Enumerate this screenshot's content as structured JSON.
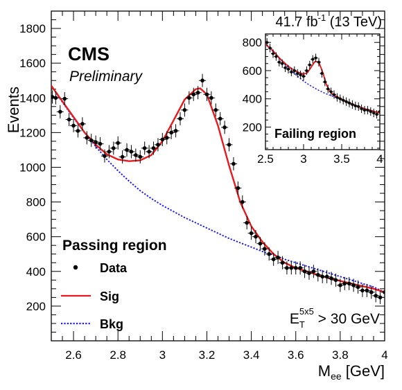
{
  "chart_data": [
    {
      "type": "scatter",
      "title": "",
      "xlabel_main": "M",
      "xlabel_sub": "ee",
      "xlabel_unit": " [GeV]",
      "ylabel": "Events",
      "xlim": [
        2.5,
        4.0
      ],
      "ylim": [
        0,
        1900
      ],
      "x_ticks": [
        2.6,
        2.8,
        3.0,
        3.2,
        3.4,
        3.6,
        3.8,
        4.0
      ],
      "x_tick_labels": [
        "2.6",
        "2.8",
        "3",
        "3.2",
        "3.4",
        "3.6",
        "3.8",
        "4"
      ],
      "y_ticks": [
        200,
        400,
        600,
        800,
        1000,
        1200,
        1400,
        1600,
        1800
      ],
      "y_tick_labels": [
        "200",
        "400",
        "600",
        "800",
        "1000",
        "1200",
        "1400",
        "1600",
        "1800"
      ],
      "lumi_label": "41.7 fb",
      "lumi_exp": "-1",
      "lumi_energy": " (13 TeV)",
      "experiment_label": "CMS",
      "status_label": "Preliminary",
      "legend": {
        "title": "Passing region",
        "entries": [
          {
            "label": "Data",
            "style": "marker",
            "color": "#000000"
          },
          {
            "label": "Sig",
            "style": "line",
            "color": "#e8191c"
          },
          {
            "label": "Bkg",
            "style": "dotted",
            "color": "#1a1aff"
          }
        ],
        "placement": "bottom-left"
      },
      "cut_label": {
        "main": "E",
        "sub": "T",
        "sup": "5x5",
        "rest": " > 30 GeV"
      },
      "series": [
        {
          "name": "Data",
          "x": [
            2.505,
            2.52,
            2.54,
            2.56,
            2.58,
            2.6,
            2.62,
            2.64,
            2.66,
            2.68,
            2.7,
            2.72,
            2.74,
            2.76,
            2.78,
            2.8,
            2.82,
            2.84,
            2.86,
            2.88,
            2.9,
            2.92,
            2.94,
            2.96,
            2.98,
            3.0,
            3.02,
            3.04,
            3.06,
            3.08,
            3.1,
            3.12,
            3.14,
            3.16,
            3.18,
            3.2,
            3.22,
            3.24,
            3.26,
            3.28,
            3.3,
            3.32,
            3.34,
            3.36,
            3.38,
            3.4,
            3.42,
            3.44,
            3.46,
            3.48,
            3.5,
            3.52,
            3.54,
            3.56,
            3.58,
            3.6,
            3.62,
            3.64,
            3.66,
            3.68,
            3.7,
            3.72,
            3.74,
            3.76,
            3.78,
            3.8,
            3.82,
            3.84,
            3.86,
            3.88,
            3.9,
            3.92,
            3.94,
            3.96,
            3.98,
            4.0
          ],
          "y": [
            1405,
            1400,
            1320,
            1395,
            1275,
            1240,
            1210,
            1250,
            1170,
            1155,
            1145,
            1135,
            1065,
            1090,
            1110,
            1140,
            1060,
            1100,
            1090,
            1070,
            1060,
            1110,
            1090,
            1110,
            1130,
            1160,
            1170,
            1200,
            1210,
            1280,
            1330,
            1400,
            1420,
            1430,
            1500,
            1420,
            1400,
            1330,
            1280,
            1230,
            1130,
            1020,
            880,
            800,
            680,
            620,
            600,
            560,
            530,
            500,
            470,
            480,
            450,
            420,
            420,
            420,
            420,
            400,
            390,
            400,
            380,
            370,
            370,
            360,
            350,
            320,
            330,
            330,
            320,
            310,
            290,
            290,
            280,
            260,
            250,
            280
          ],
          "yerr": 38
        },
        {
          "name": "Sig",
          "color": "#e8191c",
          "x": [
            2.5,
            2.55,
            2.6,
            2.65,
            2.7,
            2.75,
            2.8,
            2.85,
            2.9,
            2.95,
            3.0,
            3.05,
            3.1,
            3.15,
            3.17,
            3.2,
            3.25,
            3.3,
            3.35,
            3.4,
            3.45,
            3.5,
            3.55,
            3.6,
            3.65,
            3.7,
            3.75,
            3.8,
            3.85,
            3.9,
            3.95,
            4.0
          ],
          "y": [
            1470,
            1380,
            1290,
            1200,
            1130,
            1075,
            1045,
            1035,
            1040,
            1070,
            1150,
            1270,
            1390,
            1450,
            1455,
            1420,
            1240,
            1010,
            800,
            660,
            570,
            500,
            450,
            420,
            400,
            380,
            360,
            345,
            330,
            315,
            300,
            280
          ]
        },
        {
          "name": "Bkg",
          "color": "#1a1aff",
          "x": [
            2.5,
            2.55,
            2.6,
            2.65,
            2.7,
            2.75,
            2.8,
            2.85,
            2.9,
            2.95,
            3.0,
            3.05,
            3.1,
            3.15,
            3.2,
            3.25,
            3.3,
            3.35,
            3.4,
            3.45,
            3.5,
            3.55,
            3.6,
            3.65,
            3.7,
            3.75,
            3.8,
            3.85,
            3.9,
            3.95,
            4.0
          ],
          "y": [
            1470,
            1375,
            1285,
            1200,
            1120,
            1045,
            980,
            920,
            865,
            820,
            780,
            745,
            710,
            680,
            650,
            620,
            590,
            565,
            540,
            515,
            495,
            470,
            450,
            430,
            410,
            390,
            370,
            350,
            330,
            310,
            280
          ]
        }
      ]
    },
    {
      "type": "scatter",
      "title": "",
      "inset_label": "Failing region",
      "xlim": [
        2.5,
        4.0
      ],
      "ylim": [
        40,
        860
      ],
      "x_ticks": [
        2.5,
        3.0,
        3.5,
        4.0
      ],
      "x_tick_labels": [
        "2.5",
        "3",
        "3.5",
        "4"
      ],
      "y_ticks": [
        200,
        400,
        600,
        800
      ],
      "y_tick_labels": [
        "200",
        "400",
        "600",
        "800"
      ],
      "series": [
        {
          "name": "Data",
          "x": [
            2.52,
            2.56,
            2.6,
            2.64,
            2.68,
            2.72,
            2.76,
            2.8,
            2.84,
            2.88,
            2.92,
            2.96,
            3.0,
            3.04,
            3.08,
            3.12,
            3.16,
            3.2,
            3.24,
            3.28,
            3.32,
            3.36,
            3.4,
            3.44,
            3.48,
            3.52,
            3.56,
            3.6,
            3.64,
            3.68,
            3.72,
            3.76,
            3.8,
            3.84,
            3.88,
            3.92,
            3.96,
            4.0
          ],
          "y": [
            800,
            760,
            720,
            700,
            660,
            650,
            620,
            610,
            590,
            600,
            580,
            570,
            560,
            600,
            640,
            680,
            690,
            660,
            580,
            520,
            470,
            450,
            430,
            410,
            400,
            390,
            380,
            370,
            360,
            350,
            345,
            330,
            320,
            320,
            310,
            300,
            290,
            310
          ],
          "yerr": 30
        },
        {
          "name": "Sig",
          "color": "#e8191c",
          "x": [
            2.5,
            2.6,
            2.7,
            2.8,
            2.9,
            3.0,
            3.05,
            3.1,
            3.15,
            3.2,
            3.25,
            3.3,
            3.35,
            3.4,
            3.5,
            3.6,
            3.7,
            3.8,
            3.9,
            4.0
          ],
          "y": [
            790,
            740,
            680,
            630,
            595,
            575,
            585,
            625,
            665,
            660,
            590,
            500,
            450,
            425,
            395,
            370,
            350,
            330,
            315,
            300
          ]
        },
        {
          "name": "Bkg",
          "color": "#1a1aff",
          "x": [
            2.5,
            2.6,
            2.7,
            2.8,
            2.9,
            3.0,
            3.1,
            3.2,
            3.3,
            3.4,
            3.5,
            3.6,
            3.7,
            3.8,
            3.9,
            4.0
          ],
          "y": [
            790,
            735,
            675,
            620,
            570,
            525,
            490,
            460,
            435,
            415,
            395,
            370,
            350,
            330,
            315,
            300
          ]
        }
      ]
    }
  ]
}
